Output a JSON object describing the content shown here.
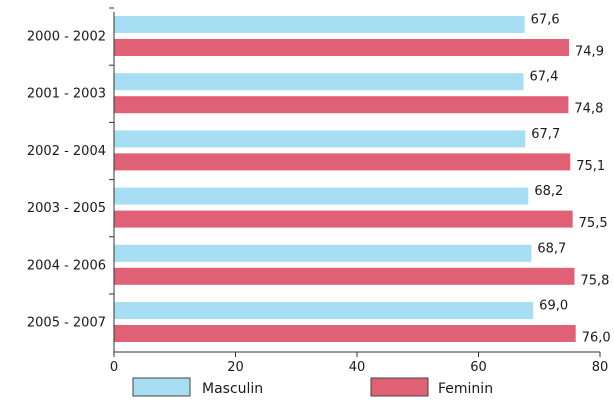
{
  "chart_data": {
    "type": "bar",
    "orientation": "horizontal",
    "categories": [
      "2000 - 2002",
      "2001 - 2003",
      "2002 - 2004",
      "2003 - 2005",
      "2004 - 2006",
      "2005 - 2007"
    ],
    "series": [
      {
        "name": "Masculin",
        "color": "#a8def3",
        "values": [
          67.6,
          67.4,
          67.7,
          68.2,
          68.7,
          69.0
        ],
        "labels": [
          "67,6",
          "67,4",
          "67,7",
          "68,2",
          "68,7",
          "69,0"
        ]
      },
      {
        "name": "Feminin",
        "color": "#e06075",
        "values": [
          74.9,
          74.8,
          75.1,
          75.5,
          75.8,
          76.0
        ],
        "labels": [
          "74,9",
          "74,8",
          "75,1",
          "75,5",
          "75,8",
          "76,0"
        ]
      }
    ],
    "x_ticks": [
      "0",
      "20",
      "40",
      "60",
      "80"
    ],
    "xlim": [
      0,
      80
    ],
    "grid": false,
    "legend_position": "bottom"
  }
}
